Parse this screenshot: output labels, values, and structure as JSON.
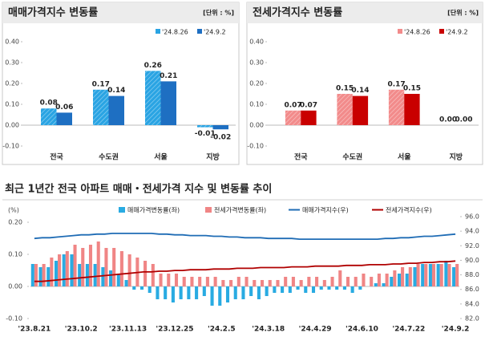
{
  "chart_data": [
    {
      "type": "bar",
      "title": "매매가격지수 변동률",
      "unit": "[단위 : %]",
      "categories": [
        "전국",
        "수도권",
        "서울",
        "지방"
      ],
      "series": [
        {
          "name": "'24.8.26",
          "color": "#2aa4e3",
          "hatched": true,
          "values": [
            0.08,
            0.17,
            0.26,
            -0.01
          ]
        },
        {
          "name": "'24.9.2",
          "color": "#1e6fc2",
          "values": [
            0.06,
            0.14,
            0.21,
            -0.02
          ]
        }
      ],
      "ylim": [
        -0.1,
        0.4
      ],
      "yticks": [
        {
          "value": 0.4,
          "label": "0.40"
        },
        {
          "value": 0.3,
          "label": "0.30"
        },
        {
          "value": 0.2,
          "label": "0.20"
        },
        {
          "value": 0.1,
          "label": "0.10"
        },
        {
          "value": 0,
          "label": "0.00"
        },
        {
          "value": -0.1,
          "label": "-0.10"
        }
      ]
    },
    {
      "type": "bar",
      "title": "전세가격지수 변동률",
      "unit": "[단위 : %]",
      "categories": [
        "전국",
        "수도권",
        "서울",
        "지방"
      ],
      "series": [
        {
          "name": "'24.8.26",
          "color": "#f28b8b",
          "hatched": true,
          "values": [
            0.07,
            0.15,
            0.17,
            0
          ],
          "value_labels": [
            "0.07",
            "0.15",
            "0.17",
            "0.00"
          ]
        },
        {
          "name": "'24.9.2",
          "color": "#c90000",
          "values": [
            0.07,
            0.14,
            0.15,
            0
          ],
          "value_labels": [
            "0.07",
            "0.14",
            "0.15",
            "0.00"
          ]
        }
      ],
      "ylim": [
        -0.1,
        0.4
      ],
      "yticks": [
        {
          "value": 0.4,
          "label": "0.40"
        },
        {
          "value": 0.3,
          "label": "0.30"
        },
        {
          "value": 0.2,
          "label": "0.20"
        },
        {
          "value": 0.1,
          "label": "0.10"
        },
        {
          "value": 0,
          "label": "0.00"
        },
        {
          "value": -0.1,
          "label": "-0.10"
        }
      ]
    },
    {
      "type": "combo",
      "title": "최근 1년간 전국 아파트 매매・전세가격 지수 및 변동률 추이",
      "y_label": "(%)",
      "categories": [
        "'23.8.21",
        null,
        null,
        null,
        null,
        null,
        "'23.10.2",
        null,
        null,
        null,
        null,
        null,
        "'23.11.13",
        null,
        null,
        null,
        null,
        null,
        "'23.12.25",
        null,
        null,
        null,
        null,
        null,
        "'24.2.5",
        null,
        null,
        null,
        null,
        null,
        "'24.3.18",
        null,
        null,
        null,
        null,
        null,
        "'24.4.29",
        null,
        null,
        null,
        null,
        null,
        "'24.6.10",
        null,
        null,
        null,
        null,
        null,
        "'24.7.22",
        null,
        null,
        null,
        null,
        null,
        "'24.9.2"
      ],
      "series": [
        {
          "name": "매매가격변동률(좌)",
          "type": "bar",
          "color": "#29abe2",
          "values": [
            0.07,
            0.06,
            0.06,
            0.08,
            0.1,
            0.1,
            0.07,
            0.07,
            0.07,
            0.06,
            0.05,
            0.04,
            0.02,
            -0.01,
            -0.01,
            -0.02,
            -0.04,
            -0.04,
            -0.05,
            -0.04,
            -0.04,
            -0.04,
            -0.03,
            -0.06,
            -0.06,
            -0.05,
            -0.04,
            -0.04,
            -0.03,
            -0.04,
            -0.03,
            -0.02,
            -0.02,
            -0.02,
            -0.01,
            -0.02,
            -0.02,
            -0.01,
            -0.01,
            -0.01,
            -0.01,
            -0.02,
            -0.01,
            0.0,
            0.01,
            0.01,
            0.03,
            0.04,
            0.04,
            0.06,
            0.07,
            0.07,
            0.07,
            0.08,
            0.06
          ]
        },
        {
          "name": "전세가격변동률(좌)",
          "type": "bar",
          "color": "#f08585",
          "values": [
            0.07,
            0.07,
            0.09,
            0.1,
            0.11,
            0.13,
            0.12,
            0.13,
            0.14,
            0.12,
            0.12,
            0.11,
            0.1,
            0.09,
            0.08,
            0.07,
            0.04,
            0.04,
            0.04,
            0.03,
            0.03,
            0.03,
            0.03,
            0.03,
            0.02,
            0.02,
            0.03,
            0.03,
            0.02,
            0.02,
            0.02,
            0.02,
            0.03,
            0.03,
            0.02,
            0.03,
            0.03,
            0.02,
            0.03,
            0.05,
            0.03,
            0.03,
            0.04,
            0.03,
            0.04,
            0.04,
            0.05,
            0.06,
            0.06,
            0.07,
            0.07,
            0.07,
            0.07,
            0.07,
            0.07
          ]
        },
        {
          "name": "매매가격지수(우)",
          "type": "line",
          "axis": "y2",
          "color": "#1f6cb5",
          "values": [
            93.0,
            93.1,
            93.1,
            93.2,
            93.3,
            93.4,
            93.5,
            93.5,
            93.6,
            93.6,
            93.7,
            93.7,
            93.7,
            93.7,
            93.7,
            93.7,
            93.6,
            93.6,
            93.5,
            93.5,
            93.4,
            93.4,
            93.4,
            93.3,
            93.3,
            93.2,
            93.2,
            93.1,
            93.1,
            93.1,
            93.0,
            93.0,
            93.0,
            93.0,
            92.9,
            92.9,
            92.9,
            92.9,
            92.9,
            92.9,
            92.9,
            92.9,
            92.9,
            92.9,
            92.9,
            93.0,
            93.0,
            93.1,
            93.1,
            93.2,
            93.3,
            93.3,
            93.4,
            93.5,
            93.6
          ]
        },
        {
          "name": "전세가격지수(우)",
          "type": "line",
          "axis": "y2",
          "color": "#b00000",
          "values": [
            87.1,
            87.1,
            87.2,
            87.3,
            87.4,
            87.5,
            87.6,
            87.7,
            87.8,
            87.9,
            88.0,
            88.1,
            88.2,
            88.3,
            88.4,
            88.4,
            88.5,
            88.5,
            88.6,
            88.6,
            88.7,
            88.7,
            88.7,
            88.8,
            88.8,
            88.8,
            88.9,
            88.9,
            88.9,
            89.0,
            89.0,
            89.0,
            89.0,
            89.1,
            89.1,
            89.1,
            89.2,
            89.2,
            89.2,
            89.2,
            89.3,
            89.3,
            89.3,
            89.4,
            89.4,
            89.4,
            89.5,
            89.5,
            89.6,
            89.6,
            89.7,
            89.7,
            89.8,
            89.8,
            89.9
          ]
        }
      ],
      "ylim": [
        -0.1,
        0.2
      ],
      "yticks": [
        {
          "value": 0.2,
          "label": "0.20"
        },
        {
          "value": 0.1,
          "label": "0.10"
        },
        {
          "value": 0,
          "label": "0.00"
        },
        {
          "value": -0.1,
          "label": "-0.10"
        }
      ],
      "y2lim": [
        82,
        96
      ],
      "y2ticks": [
        {
          "value": 96,
          "label": "96.0"
        },
        {
          "value": 94,
          "label": "94.0"
        },
        {
          "value": 92,
          "label": "92.0"
        },
        {
          "value": 90,
          "label": "90.0"
        },
        {
          "value": 88,
          "label": "88.0"
        },
        {
          "value": 86,
          "label": "86.0"
        },
        {
          "value": 84,
          "label": "84.0"
        },
        {
          "value": 82,
          "label": "82.0"
        }
      ]
    }
  ]
}
